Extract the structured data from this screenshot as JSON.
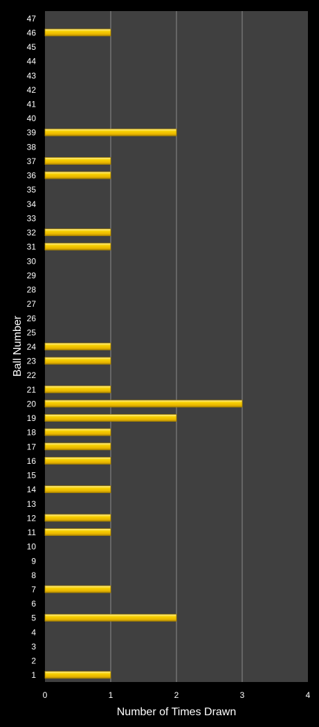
{
  "chart_data": {
    "type": "bar",
    "orientation": "horizontal",
    "title": "",
    "xlabel": "Number of Times Drawn",
    "ylabel": "Ball Number",
    "xlim": [
      0,
      4
    ],
    "xticks": [
      "0",
      "1",
      "2",
      "3",
      "4"
    ],
    "grid": "vertical",
    "legend": "none",
    "categories": [
      "1",
      "2",
      "3",
      "4",
      "5",
      "6",
      "7",
      "8",
      "9",
      "10",
      "11",
      "12",
      "13",
      "14",
      "15",
      "16",
      "17",
      "18",
      "19",
      "20",
      "21",
      "22",
      "23",
      "24",
      "25",
      "26",
      "27",
      "28",
      "29",
      "30",
      "31",
      "32",
      "33",
      "34",
      "35",
      "36",
      "37",
      "38",
      "39",
      "40",
      "41",
      "42",
      "43",
      "44",
      "45",
      "46",
      "47"
    ],
    "values": [
      1,
      0,
      0,
      0,
      2,
      0,
      1,
      0,
      0,
      0,
      1,
      1,
      0,
      1,
      0,
      1,
      1,
      1,
      2,
      3,
      1,
      0,
      1,
      1,
      0,
      0,
      0,
      0,
      0,
      0,
      1,
      1,
      0,
      0,
      0,
      1,
      1,
      0,
      2,
      0,
      0,
      0,
      0,
      0,
      0,
      1,
      0
    ]
  },
  "colors": {
    "background": "#000000",
    "plot_area": "#404040",
    "gridline": "#8c8c8c",
    "bar_fill": "#f2c200",
    "bar_highlight": "#ffe878",
    "bar_edge": "#a88400",
    "text": "#ffffff"
  }
}
